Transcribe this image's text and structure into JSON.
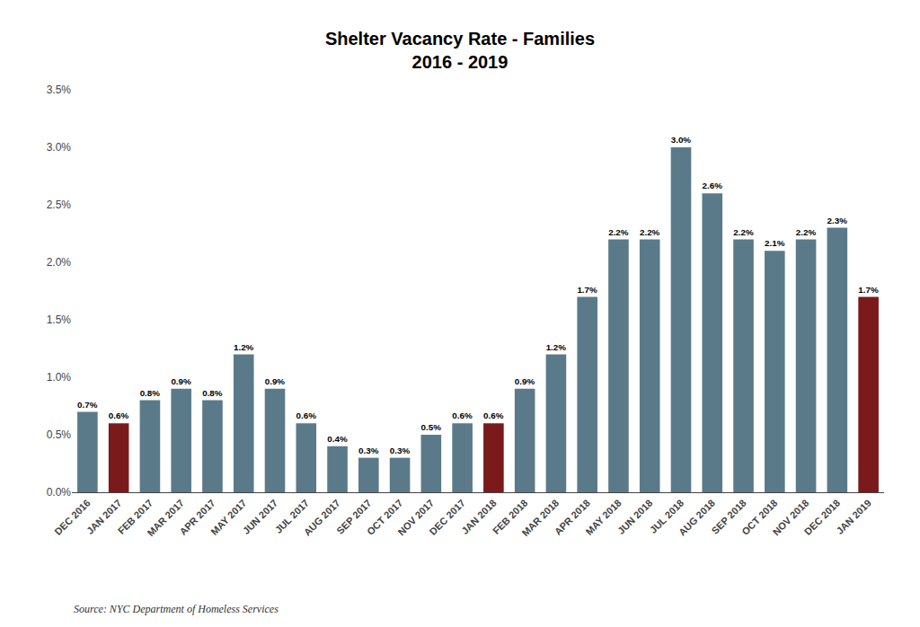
{
  "chart_data": {
    "type": "bar",
    "title": "Shelter Vacancy Rate - Families\n2016 - 2019",
    "annotations": [
      "Source: NYC Department of Homeless Services"
    ],
    "categories": [
      "DEC 2016",
      "JAN 2017",
      "FEB 2017",
      "MAR 2017",
      "APR 2017",
      "MAY 2017",
      "JUN 2017",
      "JUL 2017",
      "AUG 2017",
      "SEP 2017",
      "OCT 2017",
      "NOV 2017",
      "DEC 2017",
      "JAN 2018",
      "FEB 2018",
      "MAR 2018",
      "APR 2018",
      "MAY 2018",
      "JUN 2018",
      "JUL 2018",
      "AUG 2018",
      "SEP 2018",
      "OCT 2018",
      "NOV 2018",
      "DEC 2018",
      "JAN 2019"
    ],
    "values": [
      0.007,
      0.006,
      0.008,
      0.009,
      0.008,
      0.012,
      0.009,
      0.006,
      0.004,
      0.003,
      0.003,
      0.005,
      0.006,
      0.006,
      0.009,
      0.012,
      0.017,
      0.022,
      0.022,
      0.03,
      0.026,
      0.022,
      0.021,
      0.022,
      0.023,
      0.017
    ],
    "value_labels": [
      "0.7%",
      "0.6%",
      "0.8%",
      "0.9%",
      "0.8%",
      "1.2%",
      "0.9%",
      "0.6%",
      "0.4%",
      "0.3%",
      "0.3%",
      "0.5%",
      "0.6%",
      "0.6%",
      "0.9%",
      "1.2%",
      "1.7%",
      "2.2%",
      "2.2%",
      "3.0%",
      "2.6%",
      "2.2%",
      "2.1%",
      "2.2%",
      "2.3%",
      "1.7%"
    ],
    "colors": [
      "#5a7a8a",
      "#7a1a1a",
      "#5a7a8a",
      "#5a7a8a",
      "#5a7a8a",
      "#5a7a8a",
      "#5a7a8a",
      "#5a7a8a",
      "#5a7a8a",
      "#5a7a8a",
      "#5a7a8a",
      "#5a7a8a",
      "#5a7a8a",
      "#7a1a1a",
      "#5a7a8a",
      "#5a7a8a",
      "#5a7a8a",
      "#5a7a8a",
      "#5a7a8a",
      "#5a7a8a",
      "#5a7a8a",
      "#5a7a8a",
      "#5a7a8a",
      "#5a7a8a",
      "#5a7a8a",
      "#7a1a1a"
    ],
    "ylim": [
      0,
      0.035
    ],
    "yticks": [
      {
        "value": 0.0,
        "label": "0.0%"
      },
      {
        "value": 0.005,
        "label": "0.5%"
      },
      {
        "value": 0.01,
        "label": "1.0%"
      },
      {
        "value": 0.015,
        "label": "1.5%"
      },
      {
        "value": 0.02,
        "label": "2.0%"
      },
      {
        "value": 0.025,
        "label": "2.5%"
      },
      {
        "value": 0.03,
        "label": "3.0%"
      },
      {
        "value": 0.035,
        "label": "3.5%"
      }
    ],
    "grid": false,
    "data_labels": true
  }
}
